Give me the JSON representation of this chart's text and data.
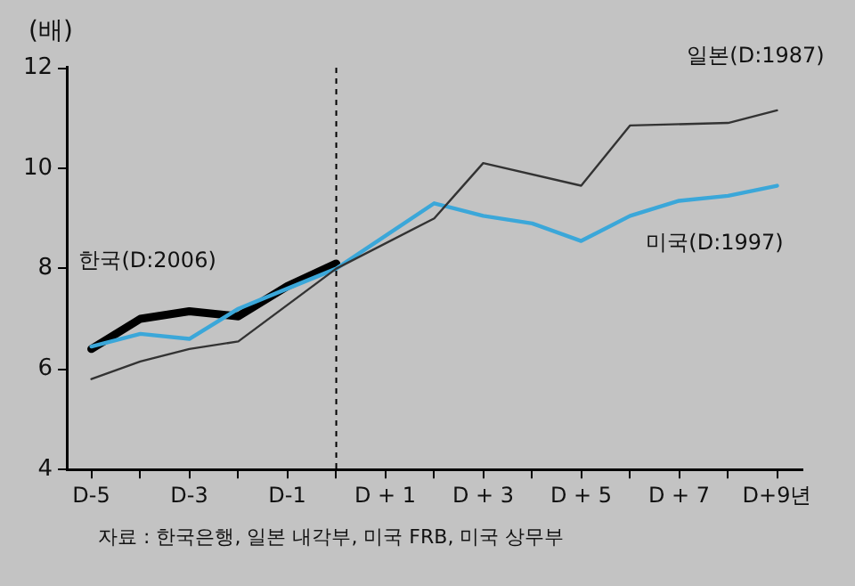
{
  "chart_data": {
    "type": "line",
    "ylabel": "(배)",
    "xlim": [
      -5.5,
      9.5
    ],
    "xticks": [
      {
        "value": -5,
        "label": "D-5"
      },
      {
        "value": -4,
        "label": null
      },
      {
        "value": -3,
        "label": "D-3"
      },
      {
        "value": -2,
        "label": null
      },
      {
        "value": -1,
        "label": "D-1"
      },
      {
        "value": 0,
        "label": null
      },
      {
        "value": 1,
        "label": "D + 1"
      },
      {
        "value": 2,
        "label": null
      },
      {
        "value": 3,
        "label": "D + 3"
      },
      {
        "value": 4,
        "label": null
      },
      {
        "value": 5,
        "label": "D + 5"
      },
      {
        "value": 6,
        "label": null
      },
      {
        "value": 7,
        "label": "D + 7"
      },
      {
        "value": 8,
        "label": null
      },
      {
        "value": 9,
        "label": "D+9년"
      }
    ],
    "ylim": [
      4,
      12
    ],
    "yticks": [
      4,
      6,
      8,
      10,
      12
    ],
    "series": [
      {
        "name": "한국(D:2006)",
        "color": "#000000",
        "x": [
          -5,
          -4,
          -3,
          -2,
          -1,
          0
        ],
        "values": [
          6.4,
          7.0,
          7.15,
          7.05,
          7.65,
          8.1
        ]
      },
      {
        "name": "일본(D:1987)",
        "color": "#333333",
        "x": [
          -5,
          -4,
          -3,
          -2,
          0,
          2,
          3,
          5,
          6,
          8,
          9
        ],
        "values": [
          5.8,
          6.15,
          6.4,
          6.55,
          8.0,
          9.0,
          10.1,
          9.65,
          10.85,
          10.9,
          11.15
        ]
      },
      {
        "name": "미국(D:1997)",
        "color": "#3ba7d9",
        "x": [
          -5,
          -4,
          -3,
          -2,
          -1,
          0,
          2,
          3,
          4,
          5,
          6,
          7,
          8,
          9
        ],
        "values": [
          6.45,
          6.7,
          6.6,
          7.2,
          7.6,
          8.0,
          9.3,
          9.05,
          8.9,
          8.55,
          9.05,
          9.35,
          9.45,
          9.65
        ]
      }
    ],
    "ref_lines": [
      {
        "axis": "x",
        "value": 0,
        "color": "#000000",
        "line_style": "dashed"
      }
    ],
    "annotations": [
      "자료 : 한국은행, 일본 내각부, 미국 FRB, 미국 상무부"
    ],
    "grid": false,
    "legend": false,
    "marker": "none",
    "line_style": "solid"
  }
}
